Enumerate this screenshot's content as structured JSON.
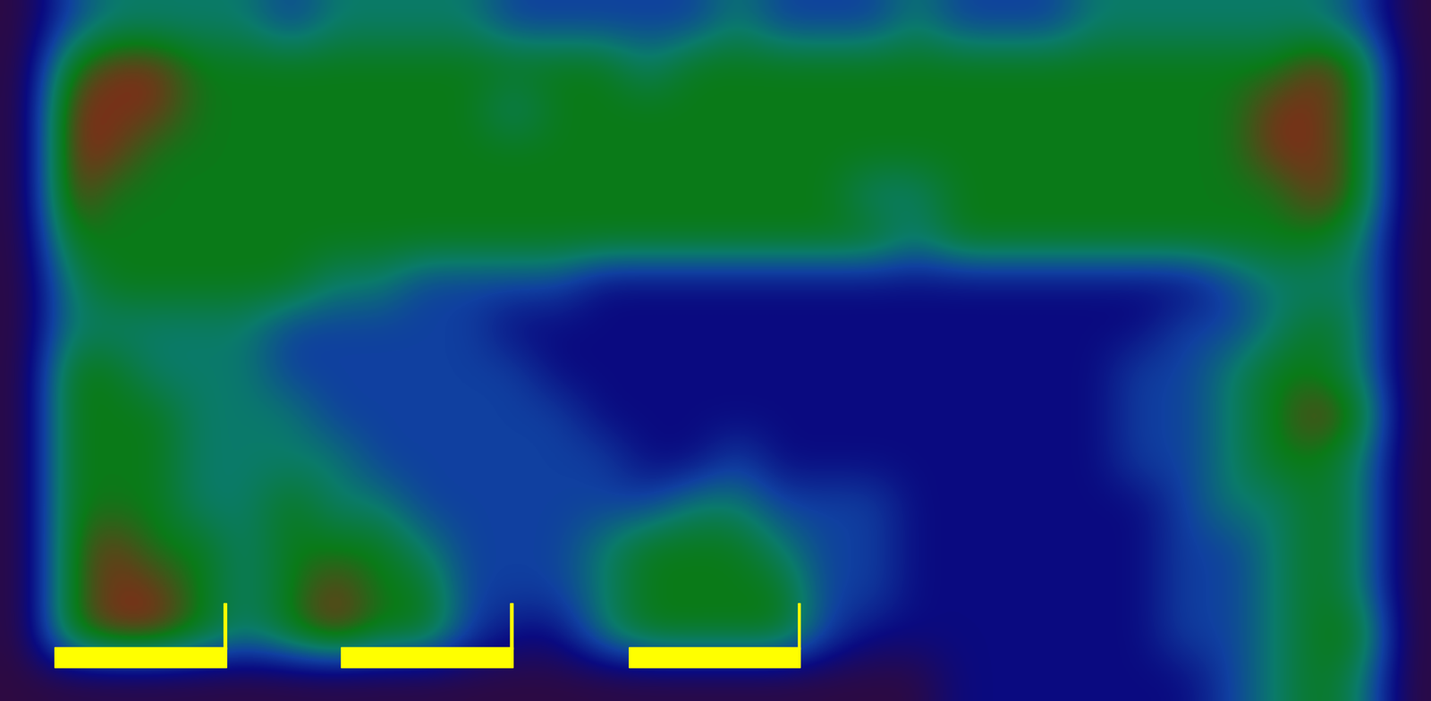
{
  "chart_data": {
    "type": "heatmap",
    "tick_labels": false,
    "cells": [
      [
        0,
        2,
        3,
        3,
        3,
        3,
        2,
        3,
        3,
        3,
        3,
        2,
        2,
        2,
        2,
        2,
        3,
        2,
        2,
        2,
        3,
        2,
        2,
        2,
        3,
        3,
        3,
        3,
        3,
        3,
        2,
        0
      ],
      [
        0,
        4,
        5,
        5,
        4,
        4,
        4,
        4,
        4,
        4,
        4,
        4,
        4,
        4,
        3,
        4,
        4,
        4,
        4,
        4,
        4,
        4,
        4,
        4,
        4,
        4,
        4,
        4,
        4,
        5,
        4,
        0
      ],
      [
        0,
        5,
        5,
        5,
        4,
        4,
        4,
        4,
        4,
        4,
        4,
        3,
        4,
        4,
        4,
        4,
        4,
        4,
        4,
        4,
        4,
        4,
        4,
        4,
        4,
        4,
        4,
        4,
        5,
        5,
        4,
        0
      ],
      [
        0,
        5,
        5,
        4,
        4,
        4,
        4,
        4,
        4,
        4,
        4,
        4,
        4,
        4,
        4,
        4,
        4,
        4,
        4,
        4,
        4,
        4,
        4,
        4,
        4,
        4,
        4,
        4,
        5,
        5,
        4,
        0
      ],
      [
        0,
        5,
        4,
        4,
        4,
        4,
        4,
        4,
        4,
        4,
        4,
        4,
        4,
        4,
        4,
        4,
        4,
        4,
        4,
        3,
        3,
        4,
        4,
        4,
        4,
        4,
        4,
        4,
        4,
        5,
        4,
        0
      ],
      [
        0,
        4,
        4,
        4,
        4,
        4,
        4,
        4,
        4,
        4,
        4,
        4,
        4,
        4,
        4,
        4,
        4,
        4,
        4,
        4,
        3,
        4,
        4,
        4,
        4,
        4,
        4,
        4,
        4,
        4,
        3,
        0
      ],
      [
        0,
        3,
        4,
        4,
        4,
        4,
        4,
        3,
        3,
        2,
        2,
        2,
        2,
        1,
        1,
        1,
        1,
        1,
        1,
        1,
        1,
        1,
        1,
        1,
        1,
        1,
        1,
        2,
        3,
        3,
        3,
        0
      ],
      [
        0,
        3,
        3,
        3,
        3,
        3,
        2,
        2,
        2,
        2,
        2,
        1,
        1,
        1,
        1,
        1,
        1,
        1,
        1,
        1,
        1,
        1,
        1,
        1,
        1,
        1,
        2,
        2,
        3,
        4,
        3,
        0
      ],
      [
        0,
        4,
        4,
        3,
        3,
        3,
        2,
        2,
        2,
        2,
        2,
        2,
        1,
        1,
        1,
        1,
        1,
        1,
        1,
        1,
        1,
        1,
        1,
        1,
        1,
        2,
        2,
        3,
        4,
        4,
        3,
        0
      ],
      [
        0,
        4,
        4,
        4,
        3,
        3,
        3,
        2,
        2,
        2,
        2,
        2,
        2,
        1,
        1,
        1,
        1,
        1,
        1,
        1,
        1,
        1,
        1,
        1,
        1,
        2,
        2,
        3,
        4,
        5,
        4,
        0
      ],
      [
        0,
        4,
        4,
        4,
        3,
        3,
        3,
        3,
        2,
        2,
        2,
        2,
        2,
        2,
        1,
        1,
        2,
        1,
        1,
        1,
        1,
        1,
        1,
        1,
        1,
        2,
        2,
        3,
        4,
        4,
        3,
        0
      ],
      [
        0,
        4,
        4,
        4,
        3,
        3,
        4,
        3,
        3,
        2,
        2,
        2,
        2,
        2,
        2,
        3,
        3,
        2,
        2,
        2,
        1,
        1,
        1,
        1,
        1,
        1,
        2,
        3,
        3,
        4,
        3,
        0
      ],
      [
        0,
        4,
        5,
        4,
        4,
        3,
        4,
        4,
        4,
        3,
        2,
        2,
        2,
        3,
        4,
        4,
        4,
        3,
        2,
        2,
        1,
        1,
        1,
        1,
        1,
        1,
        2,
        2,
        3,
        4,
        3,
        0
      ],
      [
        0,
        4,
        5,
        5,
        4,
        3,
        4,
        5,
        4,
        4,
        2,
        2,
        2,
        3,
        4,
        4,
        4,
        4,
        2,
        2,
        1,
        1,
        1,
        1,
        1,
        1,
        2,
        2,
        3,
        4,
        3,
        0
      ],
      [
        0,
        4,
        5,
        5,
        4,
        3,
        4,
        5,
        4,
        4,
        2,
        1,
        1,
        3,
        4,
        4,
        4,
        4,
        2,
        1,
        1,
        1,
        1,
        1,
        1,
        1,
        2,
        2,
        3,
        4,
        4,
        0
      ],
      [
        0,
        0,
        0,
        0,
        0,
        0,
        0,
        0,
        0,
        0,
        0,
        0,
        0,
        0,
        0,
        0,
        0,
        0,
        0,
        0,
        0,
        1,
        1,
        1,
        1,
        1,
        1,
        2,
        3,
        4,
        3,
        0
      ]
    ]
  }
}
